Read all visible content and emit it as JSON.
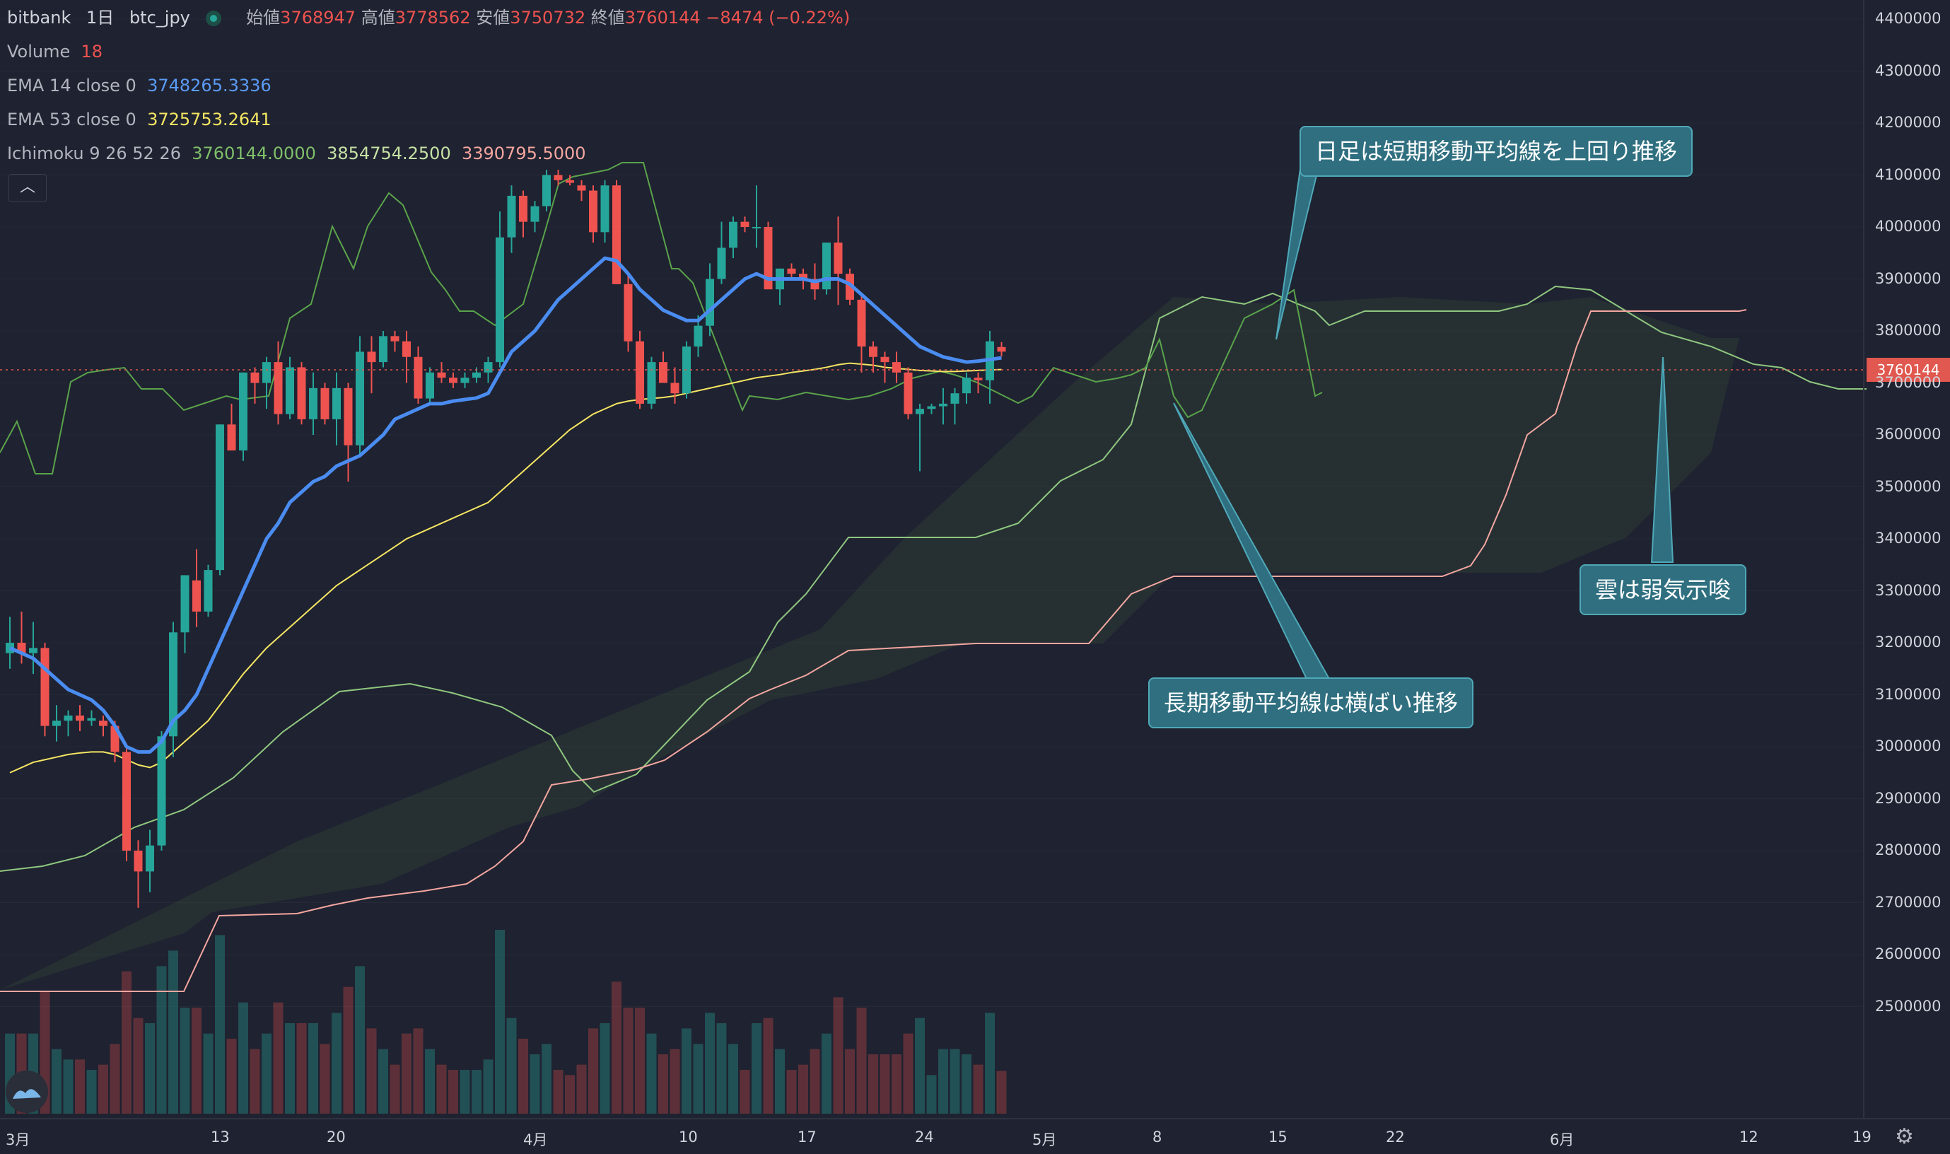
{
  "header": {
    "symbol_row": {
      "exchange": "bitbank",
      "interval": "1日",
      "pair": "btc_jpy",
      "open_label": "始値",
      "open": "3768947",
      "high_label": "高値",
      "high": "3778562",
      "low_label": "安値",
      "low": "3750732",
      "close_label": "終値",
      "close": "3760144",
      "change": "−8474 (−0.22%)"
    },
    "volume": {
      "label": "Volume",
      "value": "18"
    },
    "ema14": {
      "label": "EMA 14 close 0",
      "value": "3748265.3336"
    },
    "ema53": {
      "label": "EMA 53 close 0",
      "value": "3725753.2641"
    },
    "ichimoku": {
      "label": "Ichimoku 9 26 52 26",
      "v1": "3760144.0000",
      "v2": "3854754.2500",
      "v3": "3390795.5000"
    },
    "collapse_icon": "chevron-up-icon"
  },
  "annotations": {
    "note1": "日足は短期移動平均線を上回り推移",
    "note2": "長期移動平均線は横ばい推移",
    "note3": "雲は弱気示唆"
  },
  "price_tag": "3760144",
  "colors": {
    "up": "#26a69a",
    "down": "#ef5350",
    "ema14": "#4a8cf0",
    "ema53": "#f5e663",
    "cloud_bull": "#8fc77f",
    "cloud_bear": "#f4a6a0"
  },
  "chart_data": {
    "type": "candlestick",
    "y_axis": {
      "min": 2400000,
      "max": 4400000,
      "ticks": [
        "4400000",
        "4300000",
        "4200000",
        "4100000",
        "4000000",
        "3900000",
        "3800000",
        "3700000",
        "3600000",
        "3500000",
        "3400000",
        "3300000",
        "3200000",
        "3100000",
        "3000000",
        "2900000",
        "2800000",
        "2700000",
        "2600000",
        "2500000"
      ]
    },
    "x_axis": {
      "ticks": [
        "3月",
        "13",
        "20",
        "4月",
        "10",
        "17",
        "24",
        "5月",
        "8",
        "15",
        "22",
        "6月",
        "12",
        "19"
      ]
    },
    "candles_ohlc": [
      [
        3180000,
        3250000,
        3150000,
        3200000
      ],
      [
        3200000,
        3260000,
        3160000,
        3180000
      ],
      [
        3180000,
        3240000,
        3140000,
        3190000
      ],
      [
        3190000,
        3200000,
        3020000,
        3040000
      ],
      [
        3040000,
        3080000,
        3010000,
        3050000
      ],
      [
        3050000,
        3070000,
        3020000,
        3060000
      ],
      [
        3060000,
        3080000,
        3030000,
        3050000
      ],
      [
        3050000,
        3070000,
        3040000,
        3055000
      ],
      [
        3050000,
        3060000,
        3020000,
        3040000
      ],
      [
        3040000,
        3050000,
        2970000,
        2990000
      ],
      [
        2990000,
        3000000,
        2780000,
        2800000
      ],
      [
        2800000,
        2820000,
        2690000,
        2760000
      ],
      [
        2760000,
        2840000,
        2720000,
        2810000
      ],
      [
        2810000,
        3030000,
        2800000,
        3020000
      ],
      [
        3020000,
        3240000,
        2980000,
        3220000
      ],
      [
        3220000,
        3330000,
        3180000,
        3330000
      ],
      [
        3320000,
        3380000,
        3230000,
        3260000
      ],
      [
        3260000,
        3350000,
        3250000,
        3340000
      ],
      [
        3340000,
        3620000,
        3330000,
        3620000
      ],
      [
        3620000,
        3660000,
        3570000,
        3570000
      ],
      [
        3570000,
        3710000,
        3550000,
        3720000
      ],
      [
        3720000,
        3730000,
        3660000,
        3700000
      ],
      [
        3700000,
        3750000,
        3650000,
        3740000
      ],
      [
        3740000,
        3780000,
        3620000,
        3640000
      ],
      [
        3640000,
        3750000,
        3630000,
        3730000
      ],
      [
        3730000,
        3740000,
        3620000,
        3630000
      ],
      [
        3630000,
        3720000,
        3600000,
        3690000
      ],
      [
        3690000,
        3700000,
        3620000,
        3630000
      ],
      [
        3630000,
        3720000,
        3580000,
        3690000
      ],
      [
        3690000,
        3700000,
        3510000,
        3580000
      ],
      [
        3580000,
        3790000,
        3560000,
        3760000
      ],
      [
        3760000,
        3790000,
        3680000,
        3740000
      ],
      [
        3740000,
        3800000,
        3730000,
        3790000
      ],
      [
        3790000,
        3800000,
        3760000,
        3780000
      ],
      [
        3780000,
        3800000,
        3700000,
        3750000
      ],
      [
        3750000,
        3770000,
        3660000,
        3670000
      ],
      [
        3670000,
        3730000,
        3660000,
        3720000
      ],
      [
        3720000,
        3740000,
        3700000,
        3710000
      ],
      [
        3710000,
        3720000,
        3690000,
        3700000
      ],
      [
        3700000,
        3720000,
        3690000,
        3710000
      ],
      [
        3710000,
        3730000,
        3700000,
        3720000
      ],
      [
        3720000,
        3750000,
        3700000,
        3740000
      ],
      [
        3740000,
        4030000,
        3730000,
        3980000
      ],
      [
        3980000,
        4080000,
        3950000,
        4060000
      ],
      [
        4060000,
        4070000,
        3980000,
        4010000
      ],
      [
        4010000,
        4050000,
        3990000,
        4040000
      ],
      [
        4040000,
        4110000,
        4030000,
        4100000
      ],
      [
        4100000,
        4110000,
        4080000,
        4090000
      ],
      [
        4090000,
        4100000,
        4080000,
        4085000
      ],
      [
        4080000,
        4090000,
        4050000,
        4070000
      ],
      [
        4070000,
        4080000,
        3970000,
        3990000
      ],
      [
        3990000,
        4090000,
        3970000,
        4080000
      ],
      [
        4080000,
        4090000,
        3890000,
        3890000
      ],
      [
        3890000,
        3910000,
        3760000,
        3780000
      ],
      [
        3780000,
        3800000,
        3650000,
        3660000
      ],
      [
        3660000,
        3750000,
        3650000,
        3740000
      ],
      [
        3740000,
        3760000,
        3700000,
        3700000
      ],
      [
        3700000,
        3730000,
        3660000,
        3680000
      ],
      [
        3680000,
        3780000,
        3670000,
        3770000
      ],
      [
        3770000,
        3830000,
        3750000,
        3810000
      ],
      [
        3810000,
        3930000,
        3790000,
        3900000
      ],
      [
        3900000,
        4010000,
        3890000,
        3960000
      ],
      [
        3960000,
        4020000,
        3940000,
        4010000
      ],
      [
        4010000,
        4020000,
        3990000,
        4000000
      ],
      [
        4000000,
        4080000,
        3960000,
        4000000
      ],
      [
        4000000,
        4010000,
        3880000,
        3880000
      ],
      [
        3880000,
        3920000,
        3850000,
        3920000
      ],
      [
        3920000,
        3930000,
        3900000,
        3910000
      ],
      [
        3910000,
        3920000,
        3880000,
        3900000
      ],
      [
        3900000,
        3930000,
        3860000,
        3880000
      ],
      [
        3880000,
        3970000,
        3870000,
        3970000
      ],
      [
        3970000,
        4020000,
        3850000,
        3910000
      ],
      [
        3910000,
        3920000,
        3850000,
        3860000
      ],
      [
        3860000,
        3870000,
        3720000,
        3770000
      ],
      [
        3770000,
        3780000,
        3720000,
        3750000
      ],
      [
        3750000,
        3760000,
        3700000,
        3740000
      ],
      [
        3740000,
        3760000,
        3700000,
        3720000
      ],
      [
        3720000,
        3730000,
        3630000,
        3640000
      ],
      [
        3640000,
        3660000,
        3530000,
        3650000
      ],
      [
        3650000,
        3660000,
        3640000,
        3655000
      ],
      [
        3655000,
        3690000,
        3620000,
        3660000
      ],
      [
        3660000,
        3690000,
        3620000,
        3680000
      ],
      [
        3680000,
        3720000,
        3660000,
        3710000
      ],
      [
        3710000,
        3720000,
        3680000,
        3705000
      ],
      [
        3705000,
        3800000,
        3660000,
        3780000
      ],
      [
        3768947,
        3778562,
        3750732,
        3760144
      ]
    ],
    "ema14": [
      3190000,
      3180000,
      3170000,
      3150000,
      3130000,
      3110000,
      3100000,
      3090000,
      3070000,
      3040000,
      3000000,
      2990000,
      2990000,
      3010000,
      3050000,
      3070000,
      3100000,
      3150000,
      3200000,
      3250000,
      3300000,
      3350000,
      3400000,
      3430000,
      3470000,
      3490000,
      3510000,
      3520000,
      3540000,
      3550000,
      3560000,
      3580000,
      3600000,
      3630000,
      3640000,
      3650000,
      3660000,
      3660000,
      3665000,
      3668000,
      3671000,
      3680000,
      3720000,
      3760000,
      3780000,
      3800000,
      3830000,
      3860000,
      3880000,
      3900000,
      3920000,
      3940000,
      3935000,
      3910000,
      3880000,
      3860000,
      3840000,
      3830000,
      3820000,
      3820000,
      3840000,
      3860000,
      3880000,
      3900000,
      3910000,
      3900000,
      3900000,
      3900000,
      3900000,
      3895000,
      3900000,
      3900000,
      3890000,
      3870000,
      3850000,
      3830000,
      3810000,
      3790000,
      3770000,
      3760000,
      3750000,
      3745000,
      3740000,
      3742000,
      3745000,
      3748265
    ],
    "ema53": [
      2950000,
      2960000,
      2970000,
      2975000,
      2980000,
      2985000,
      2988000,
      2990000,
      2990000,
      2985000,
      2975000,
      2965000,
      2960000,
      2970000,
      2990000,
      3010000,
      3030000,
      3050000,
      3080000,
      3110000,
      3140000,
      3165000,
      3190000,
      3210000,
      3230000,
      3250000,
      3270000,
      3290000,
      3310000,
      3325000,
      3340000,
      3355000,
      3370000,
      3385000,
      3400000,
      3410000,
      3420000,
      3430000,
      3440000,
      3450000,
      3460000,
      3470000,
      3490000,
      3510000,
      3530000,
      3550000,
      3570000,
      3590000,
      3610000,
      3625000,
      3640000,
      3650000,
      3660000,
      3665000,
      3668000,
      3670000,
      3672000,
      3675000,
      3680000,
      3685000,
      3690000,
      3695000,
      3700000,
      3705000,
      3710000,
      3713000,
      3716000,
      3720000,
      3723000,
      3726000,
      3730000,
      3735000,
      3738000,
      3736000,
      3734000,
      3730000,
      3728000,
      3726000,
      3724000,
      3723000,
      3722000,
      3722000,
      3723000,
      3724000,
      3725000,
      3725753
    ]
  }
}
